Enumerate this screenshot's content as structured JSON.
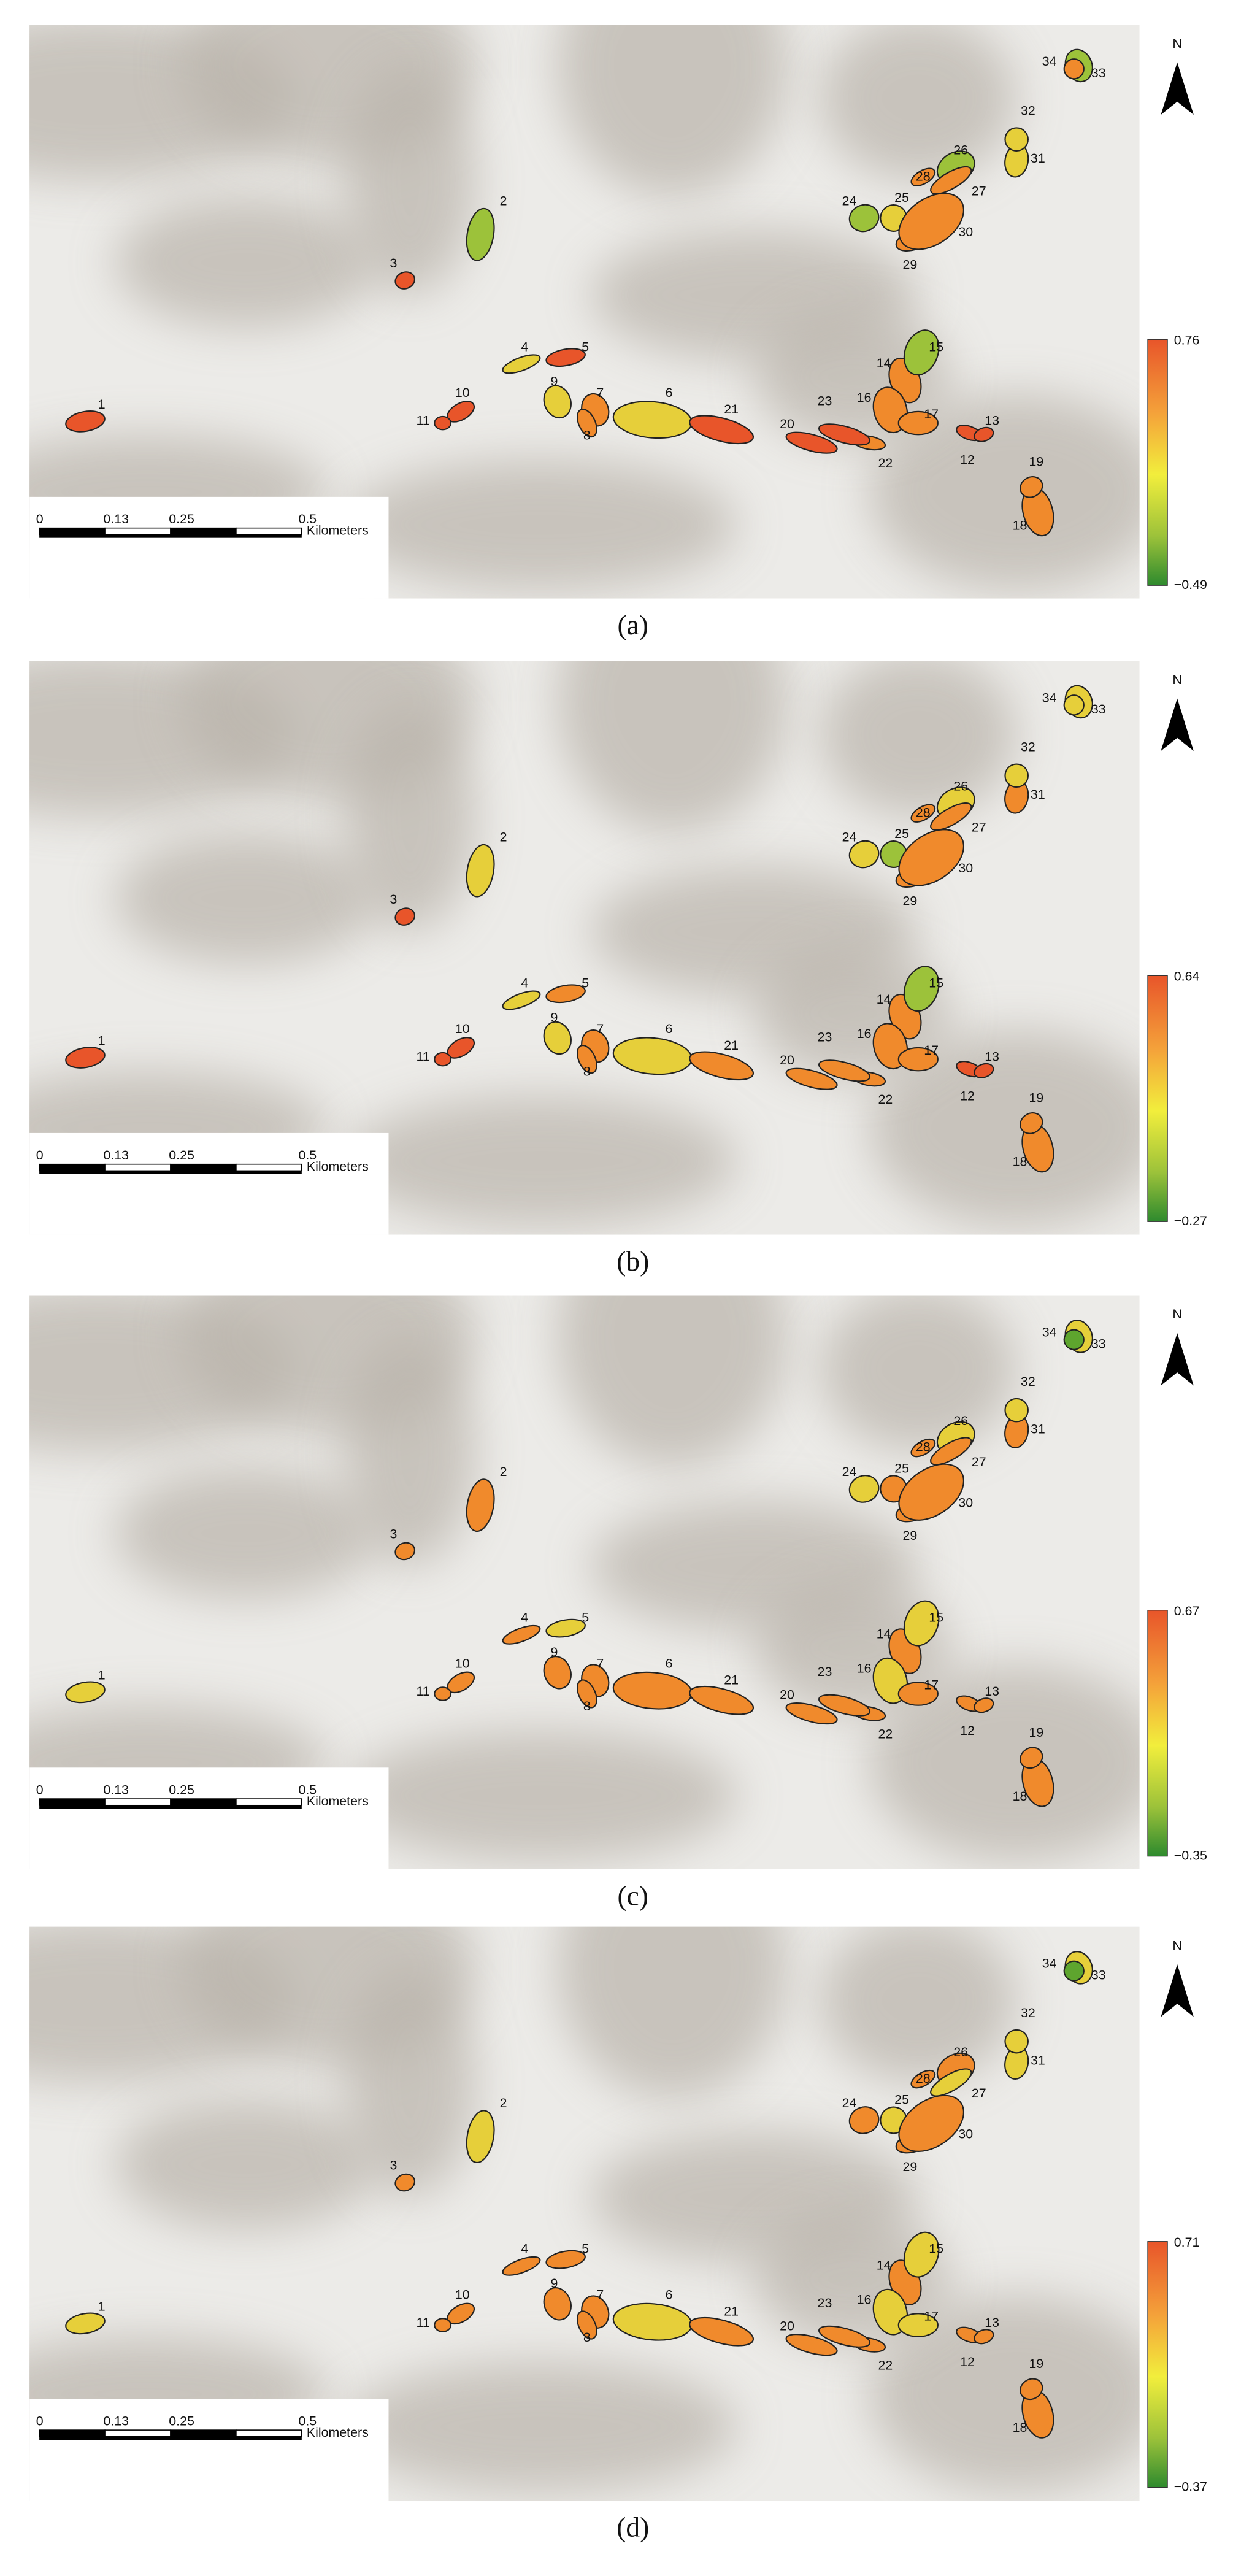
{
  "panels": [
    {
      "label": "(a)",
      "legend": {
        "max": "0.76",
        "min": "−0.49"
      }
    },
    {
      "label": "(b)",
      "legend": {
        "max": "0.64",
        "min": "−0.27"
      }
    },
    {
      "label": "(c)",
      "legend": {
        "max": "0.67",
        "min": "−0.35"
      }
    },
    {
      "label": "(d)",
      "legend": {
        "max": "0.71",
        "min": "−0.37"
      }
    }
  ],
  "field_labels": [
    "1",
    "2",
    "3",
    "4",
    "5",
    "6",
    "7",
    "8",
    "9",
    "10",
    "11",
    "12",
    "13",
    "14",
    "15",
    "16",
    "17",
    "18",
    "19",
    "20",
    "21",
    "22",
    "23",
    "24",
    "25",
    "26",
    "27",
    "28",
    "29",
    "30",
    "31",
    "32",
    "33",
    "34"
  ],
  "scale_bar": {
    "ticks": [
      "0",
      "0.13",
      "0.25",
      "0.5"
    ],
    "unit": "Kilometers"
  },
  "north_label": "N"
}
